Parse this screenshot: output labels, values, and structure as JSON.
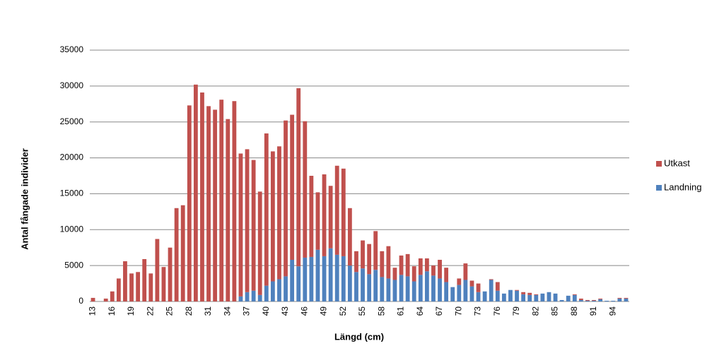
{
  "chart_data": {
    "type": "stacked_bar",
    "x_label": "Längd (cm)",
    "y_label": "Antal fångade individer",
    "categories": [
      "13",
      null,
      null,
      "16",
      null,
      null,
      "19",
      null,
      null,
      "22",
      null,
      null,
      "25",
      null,
      null,
      "28",
      null,
      null,
      "31",
      null,
      null,
      "34",
      null,
      null,
      "37",
      null,
      null,
      "40",
      null,
      null,
      "43",
      null,
      null,
      "46",
      null,
      null,
      "49",
      null,
      null,
      "52",
      null,
      null,
      "55",
      null,
      null,
      "58",
      null,
      null,
      "61",
      null,
      null,
      "64",
      null,
      null,
      "67",
      null,
      null,
      "70",
      null,
      null,
      "73",
      null,
      null,
      "76",
      null,
      null,
      "79",
      null,
      null,
      "82",
      null,
      null,
      "85",
      null,
      null,
      "88",
      null,
      null,
      "91",
      null,
      null,
      "94",
      null,
      null
    ],
    "series": [
      {
        "name": "Landning",
        "color": "#4f81bd",
        "values": [
          0,
          0,
          0,
          0,
          0,
          0,
          0,
          0,
          0,
          0,
          0,
          0,
          0,
          0,
          0,
          0,
          0,
          0,
          0,
          0,
          0,
          0,
          0,
          700,
          1300,
          1500,
          900,
          2200,
          2800,
          3100,
          3500,
          5800,
          4900,
          6100,
          6200,
          7200,
          6300,
          7400,
          6500,
          6300,
          5000,
          4100,
          4600,
          3800,
          4400,
          3400,
          3200,
          3000,
          3700,
          3500,
          2800,
          3700,
          4200,
          3600,
          3200,
          2700,
          2000,
          2300,
          3000,
          2100,
          1300,
          1400,
          3000,
          1500,
          1100,
          1600,
          1500,
          1000,
          900,
          900,
          1100,
          1300,
          1100,
          200,
          800,
          900,
          200,
          100,
          100,
          300,
          100,
          100,
          400,
          400
        ]
      },
      {
        "name": "Utkast",
        "color": "#c0504d",
        "values": [
          500,
          0,
          400,
          1400,
          3200,
          5600,
          3900,
          4100,
          5900,
          3900,
          8700,
          4800,
          7500,
          13000,
          13400,
          27300,
          30200,
          29100,
          27200,
          26700,
          28100,
          25400,
          27900,
          19900,
          19900,
          18200,
          14400,
          21200,
          18100,
          18500,
          21700,
          20200,
          24800,
          19000,
          11300,
          8000,
          11400,
          8700,
          12400,
          12200,
          8000,
          2900,
          3900,
          4200,
          5400,
          3600,
          4500,
          1700,
          2700,
          3100,
          2100,
          2300,
          1800,
          1400,
          2600,
          2000,
          0,
          900,
          2300,
          800,
          1200,
          0,
          100,
          1200,
          0,
          0,
          100,
          300,
          300,
          100,
          0,
          0,
          0,
          0,
          0,
          100,
          200,
          100,
          100,
          100,
          0,
          0,
          100,
          100
        ]
      }
    ],
    "ylim": [
      0,
      35000
    ],
    "yticks": [
      0,
      5000,
      10000,
      15000,
      20000,
      25000,
      30000,
      35000
    ],
    "grid": true,
    "legend": "right"
  }
}
